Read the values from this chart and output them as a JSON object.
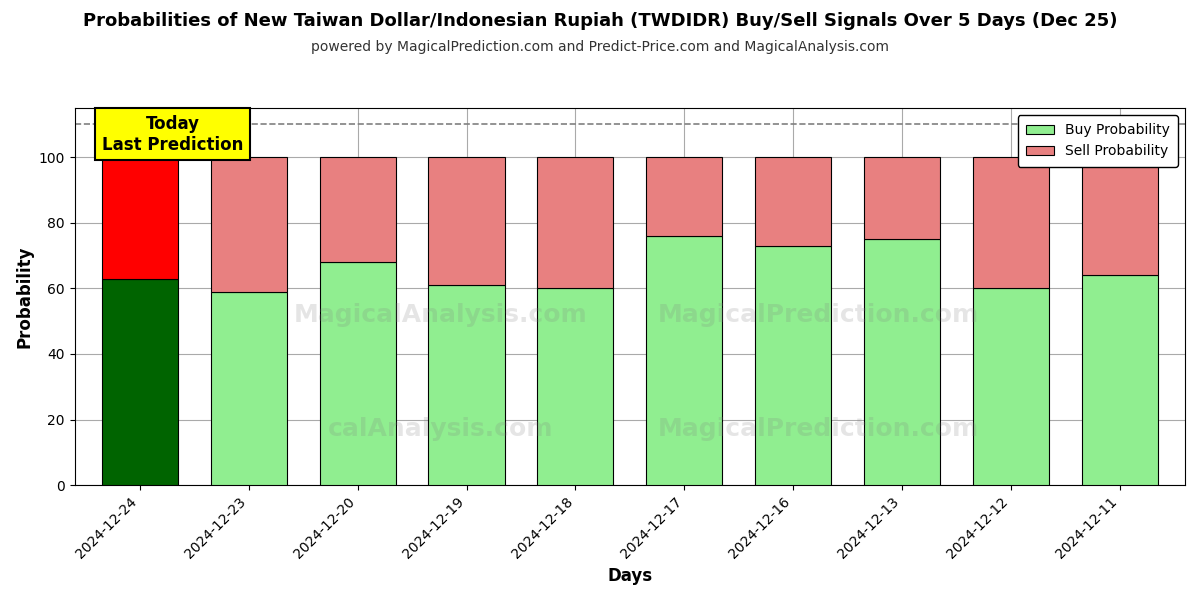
{
  "title": "Probabilities of New Taiwan Dollar/Indonesian Rupiah (TWDIDR) Buy/Sell Signals Over 5 Days (Dec 25)",
  "subtitle": "powered by MagicalPrediction.com and Predict-Price.com and MagicalAnalysis.com",
  "xlabel": "Days",
  "ylabel": "Probability",
  "categories": [
    "2024-12-24",
    "2024-12-23",
    "2024-12-20",
    "2024-12-19",
    "2024-12-18",
    "2024-12-17",
    "2024-12-16",
    "2024-12-13",
    "2024-12-12",
    "2024-12-11"
  ],
  "buy_values": [
    63,
    59,
    68,
    61,
    60,
    76,
    73,
    75,
    60,
    64
  ],
  "sell_values": [
    37,
    41,
    32,
    39,
    40,
    24,
    27,
    25,
    40,
    36
  ],
  "today_buy_color": "#006400",
  "today_sell_color": "#FF0000",
  "other_buy_color": "#90EE90",
  "other_sell_color": "#E88080",
  "bar_edge_color": "#000000",
  "ylim_max": 115,
  "yticks": [
    0,
    20,
    40,
    60,
    80,
    100
  ],
  "dashed_line_y": 110,
  "annotation_text": "Today\nLast Prediction",
  "annotation_bg": "#FFFF00",
  "legend_buy_label": "Buy Probability",
  "legend_sell_label": "Sell Probability",
  "background_color": "#FFFFFF",
  "grid_color": "#AAAAAA",
  "title_fontsize": 13,
  "subtitle_fontsize": 10,
  "axis_label_fontsize": 12,
  "tick_fontsize": 10
}
